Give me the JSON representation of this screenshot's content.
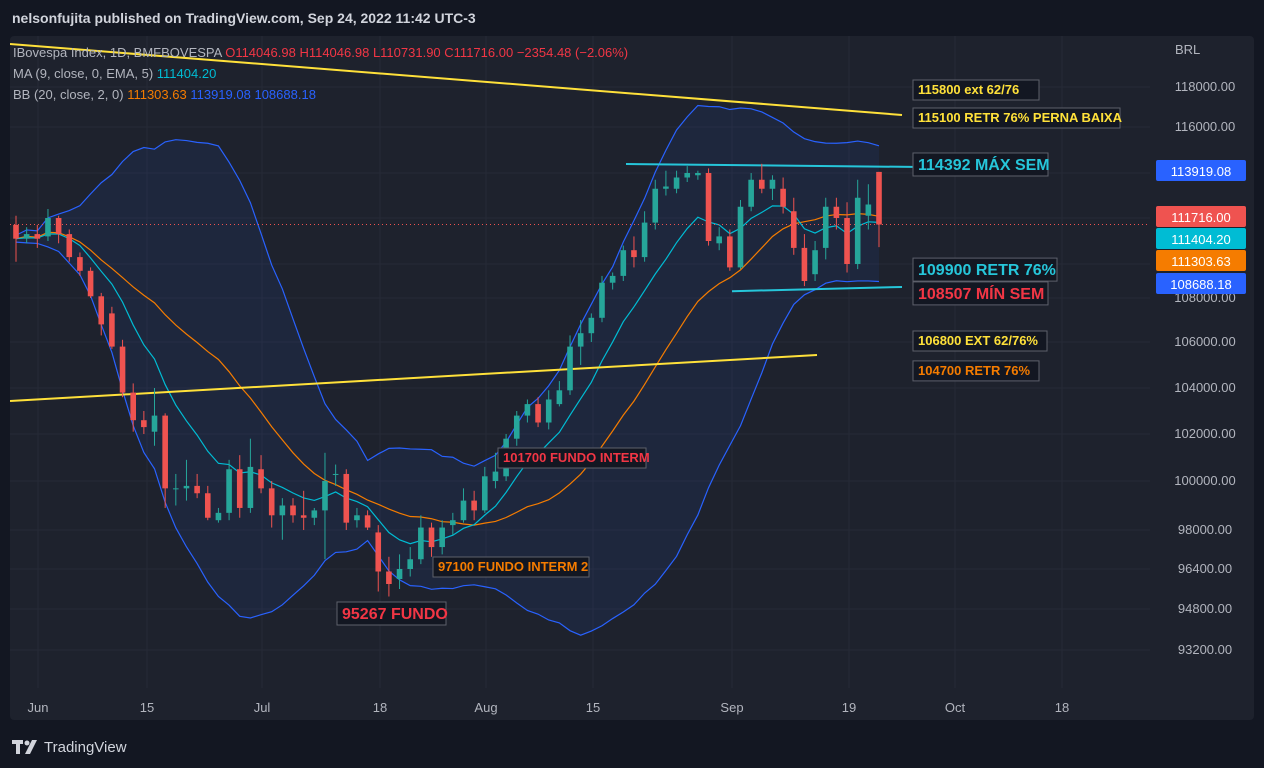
{
  "header": {
    "published_by": "nelsonfujita published on TradingView.com, Sep 24, 2022 11:42 UTC-3"
  },
  "legend": {
    "symbol": "IBovespa Index, 1D, BMFBOVESPA",
    "ohlc": {
      "o": "O114046.98",
      "h": "H114046.98",
      "l": "L110731.90",
      "c": "C111716.00",
      "chg": "−2354.48 (−2.06%)"
    },
    "ma_label": "MA (9, close, 0, EMA, 5)",
    "ma_value": "111404.20",
    "bb_label": "BB (20, close, 2, 0)",
    "bb_basis": "111303.63",
    "bb_upper": "113919.08",
    "bb_lower": "108688.18"
  },
  "colors": {
    "background": "#131722",
    "panel": "#1e222d",
    "up": "#26a69a",
    "down": "#ef5350",
    "bb_band": "#2962ff",
    "bb_basis": "#f57c00",
    "ema": "#00bcd4",
    "trendline": "#ffe13a"
  },
  "footer": {
    "brand": "TradingView"
  },
  "chart_data": {
    "type": "candlestick",
    "currency": "BRL",
    "y_ticks": [
      "118000.00",
      "116000.00",
      "114000.00",
      "112000.00",
      "110000.00",
      "108000.00",
      "106000.00",
      "104000.00",
      "102000.00",
      "100000.00",
      "98000.00",
      "96400.00",
      "94800.00",
      "93200.00"
    ],
    "x_ticks": [
      "Jun",
      "15",
      "Jul",
      "18",
      "Aug",
      "15",
      "Sep",
      "19",
      "Oct",
      "18"
    ],
    "last_price": 111716.0,
    "price_badges": [
      {
        "label": "113919.08",
        "color": "#2962ff",
        "value": 113919.08
      },
      {
        "label": "111716.00",
        "color": "#ef5350",
        "value": 111716.0
      },
      {
        "label": "111404.20",
        "color": "#00bcd4",
        "value": 111404.2
      },
      {
        "label": "111303.63",
        "color": "#f57c00",
        "value": 111303.63
      },
      {
        "label": "108688.18",
        "color": "#2962ff",
        "value": 108688.18
      }
    ],
    "annotations": [
      {
        "text": "115800 ext 62/76",
        "color": "#ffe13a",
        "value": 117800,
        "side": "right"
      },
      {
        "text": "115100 RETR 76% PERNA BAIXA",
        "color": "#ffe13a",
        "value": 116400,
        "side": "right"
      },
      {
        "text": "114392 MÁX SEM",
        "color": "#26c6da",
        "value": 114392,
        "side": "right"
      },
      {
        "text": "109900 RETR 76%",
        "color": "#26c6da",
        "value": 109700,
        "side": "right"
      },
      {
        "text": "108507 MÍN SEM",
        "color": "#f23645",
        "value": 108300,
        "side": "right"
      },
      {
        "text": "106800 EXT 62/76%",
        "color": "#ffe13a",
        "value": 106000,
        "side": "right"
      },
      {
        "text": "104700  RETR 76%",
        "color": "#f57c00",
        "value": 104700,
        "side": "right"
      },
      {
        "text": "101700 FUNDO INTERM",
        "color": "#f23645",
        "value": 100950,
        "side": "mid"
      },
      {
        "text": "97100 FUNDO INTERM 2",
        "color": "#f57c00",
        "value": 96680,
        "side": "mid"
      },
      {
        "text": "95267 FUNDO",
        "color": "#f23645",
        "value": 94700,
        "side": "low"
      }
    ],
    "candles": [
      {
        "d": "Jun 1",
        "o": 111700,
        "h": 112100,
        "l": 110100,
        "c": 111100
      },
      {
        "d": "Jun 2",
        "o": 111100,
        "h": 111600,
        "l": 110900,
        "c": 111300
      },
      {
        "d": "Jun 3",
        "o": 111300,
        "h": 111700,
        "l": 110700,
        "c": 111100
      },
      {
        "d": "Jun 6",
        "o": 111200,
        "h": 112400,
        "l": 111000,
        "c": 112000
      },
      {
        "d": "Jun 7",
        "o": 112000,
        "h": 112100,
        "l": 110900,
        "c": 111300
      },
      {
        "d": "Jun 8",
        "o": 111300,
        "h": 111500,
        "l": 110100,
        "c": 110300
      },
      {
        "d": "Jun 9",
        "o": 110300,
        "h": 110500,
        "l": 109300,
        "c": 109600
      },
      {
        "d": "Jun 10",
        "o": 109600,
        "h": 109800,
        "l": 108000,
        "c": 108100
      },
      {
        "d": "Jun 13",
        "o": 108100,
        "h": 108300,
        "l": 106300,
        "c": 106800
      },
      {
        "d": "Jun 14",
        "o": 107300,
        "h": 107600,
        "l": 105700,
        "c": 105800
      },
      {
        "d": "Jun 15",
        "o": 105800,
        "h": 106100,
        "l": 103600,
        "c": 103800
      },
      {
        "d": "Jun 16",
        "o": 103800,
        "h": 104200,
        "l": 102100,
        "c": 102600
      },
      {
        "d": "Jun 17",
        "o": 102600,
        "h": 103000,
        "l": 102000,
        "c": 102300
      },
      {
        "d": "Jun 20",
        "o": 102100,
        "h": 104000,
        "l": 101500,
        "c": 102800
      },
      {
        "d": "Jun 21",
        "o": 102800,
        "h": 102900,
        "l": 98900,
        "c": 99700
      },
      {
        "d": "Jun 22",
        "o": 99700,
        "h": 100300,
        "l": 99000,
        "c": 99700
      },
      {
        "d": "Jun 23",
        "o": 99700,
        "h": 100900,
        "l": 99200,
        "c": 99800
      },
      {
        "d": "Jun 24",
        "o": 99800,
        "h": 100300,
        "l": 99300,
        "c": 99500
      },
      {
        "d": "Jun 27",
        "o": 99500,
        "h": 99800,
        "l": 98400,
        "c": 98500
      },
      {
        "d": "Jun 28",
        "o": 98400,
        "h": 98900,
        "l": 98300,
        "c": 98700
      },
      {
        "d": "Jun 29",
        "o": 98700,
        "h": 100900,
        "l": 98400,
        "c": 100500
      },
      {
        "d": "Jun 30",
        "o": 100500,
        "h": 101100,
        "l": 98500,
        "c": 98900
      },
      {
        "d": "Jul 1",
        "o": 98900,
        "h": 101800,
        "l": 98700,
        "c": 100600
      },
      {
        "d": "Jul 4",
        "o": 100500,
        "h": 101100,
        "l": 99500,
        "c": 99700
      },
      {
        "d": "Jul 5",
        "o": 99700,
        "h": 100000,
        "l": 98100,
        "c": 98600
      },
      {
        "d": "Jul 6",
        "o": 98600,
        "h": 99300,
        "l": 97600,
        "c": 99000
      },
      {
        "d": "Jul 7",
        "o": 99000,
        "h": 99300,
        "l": 98300,
        "c": 98600
      },
      {
        "d": "Jul 8",
        "o": 98600,
        "h": 99600,
        "l": 98000,
        "c": 98500
      },
      {
        "d": "Jul 11",
        "o": 98500,
        "h": 98900,
        "l": 98200,
        "c": 98800
      },
      {
        "d": "Jul 12",
        "o": 98800,
        "h": 101200,
        "l": 96800,
        "c": 100000
      },
      {
        "d": "Jul 13",
        "o": 100300,
        "h": 100700,
        "l": 99800,
        "c": 100300
      },
      {
        "d": "Jul 14",
        "o": 100300,
        "h": 100500,
        "l": 98000,
        "c": 98300
      },
      {
        "d": "Jul 15",
        "o": 98400,
        "h": 98900,
        "l": 98100,
        "c": 98600
      },
      {
        "d": "Jul 18",
        "o": 98600,
        "h": 98800,
        "l": 98000,
        "c": 98100
      },
      {
        "d": "Jul 19",
        "o": 97900,
        "h": 98200,
        "l": 95500,
        "c": 96300
      },
      {
        "d": "Jul 20",
        "o": 96300,
        "h": 96900,
        "l": 95300,
        "c": 95800
      },
      {
        "d": "Jul 21",
        "o": 96000,
        "h": 97000,
        "l": 95600,
        "c": 96400
      },
      {
        "d": "Jul 22",
        "o": 96400,
        "h": 97300,
        "l": 96100,
        "c": 96800
      },
      {
        "d": "Jul 25",
        "o": 96800,
        "h": 98600,
        "l": 96600,
        "c": 98100
      },
      {
        "d": "Jul 26",
        "o": 98100,
        "h": 98300,
        "l": 96900,
        "c": 97300
      },
      {
        "d": "Jul 27",
        "o": 97300,
        "h": 98400,
        "l": 97000,
        "c": 98100
      },
      {
        "d": "Jul 28",
        "o": 98200,
        "h": 98700,
        "l": 97800,
        "c": 98400
      },
      {
        "d": "Jul 29",
        "o": 98400,
        "h": 99700,
        "l": 98300,
        "c": 99200
      },
      {
        "d": "Aug 1",
        "o": 99200,
        "h": 99600,
        "l": 98400,
        "c": 98800
      },
      {
        "d": "Aug 2",
        "o": 98800,
        "h": 100600,
        "l": 98700,
        "c": 100200
      },
      {
        "d": "Aug 3",
        "o": 100000,
        "h": 101200,
        "l": 99700,
        "c": 100400
      },
      {
        "d": "Aug 4",
        "o": 100200,
        "h": 102000,
        "l": 100000,
        "c": 101800
      },
      {
        "d": "Aug 5",
        "o": 101800,
        "h": 103000,
        "l": 101500,
        "c": 102800
      },
      {
        "d": "Aug 8",
        "o": 102800,
        "h": 103500,
        "l": 102500,
        "c": 103300
      },
      {
        "d": "Aug 9",
        "o": 103300,
        "h": 103600,
        "l": 102300,
        "c": 102500
      },
      {
        "d": "Aug 10",
        "o": 102500,
        "h": 103900,
        "l": 102200,
        "c": 103500
      },
      {
        "d": "Aug 11",
        "o": 103300,
        "h": 104300,
        "l": 103200,
        "c": 103900
      },
      {
        "d": "Aug 12",
        "o": 103900,
        "h": 106300,
        "l": 103700,
        "c": 105800
      },
      {
        "d": "Aug 15",
        "o": 105800,
        "h": 107000,
        "l": 105000,
        "c": 106400
      },
      {
        "d": "Aug 16",
        "o": 106400,
        "h": 107300,
        "l": 106000,
        "c": 107100
      },
      {
        "d": "Aug 17",
        "o": 107100,
        "h": 109300,
        "l": 106900,
        "c": 108900
      },
      {
        "d": "Aug 18",
        "o": 108900,
        "h": 109500,
        "l": 108500,
        "c": 109300
      },
      {
        "d": "Aug 19",
        "o": 109300,
        "h": 110800,
        "l": 109000,
        "c": 110600
      },
      {
        "d": "Aug 22",
        "o": 110600,
        "h": 111200,
        "l": 109800,
        "c": 110300
      },
      {
        "d": "Aug 23",
        "o": 110300,
        "h": 112300,
        "l": 110100,
        "c": 111800
      },
      {
        "d": "Aug 24",
        "o": 111800,
        "h": 113700,
        "l": 111500,
        "c": 113300
      },
      {
        "d": "Aug 25",
        "o": 113300,
        "h": 114100,
        "l": 113000,
        "c": 113400
      },
      {
        "d": "Aug 26",
        "o": 113300,
        "h": 114100,
        "l": 113100,
        "c": 113800
      },
      {
        "d": "Aug 29",
        "o": 113800,
        "h": 114300,
        "l": 113600,
        "c": 114000
      },
      {
        "d": "Aug 30",
        "o": 113900,
        "h": 114100,
        "l": 113700,
        "c": 114000
      },
      {
        "d": "Aug 31",
        "o": 114000,
        "h": 114200,
        "l": 110800,
        "c": 111000
      },
      {
        "d": "Sep 1",
        "o": 110900,
        "h": 111600,
        "l": 110600,
        "c": 111200
      },
      {
        "d": "Sep 2",
        "o": 111200,
        "h": 111500,
        "l": 109600,
        "c": 109800
      },
      {
        "d": "Sep 5",
        "o": 109800,
        "h": 112800,
        "l": 109700,
        "c": 112500
      },
      {
        "d": "Sep 6",
        "o": 112500,
        "h": 114000,
        "l": 112300,
        "c": 113700
      },
      {
        "d": "Sep 8",
        "o": 113700,
        "h": 114400,
        "l": 113100,
        "c": 113300
      },
      {
        "d": "Sep 9",
        "o": 113300,
        "h": 113900,
        "l": 112800,
        "c": 113700
      },
      {
        "d": "Sep 12",
        "o": 113300,
        "h": 113800,
        "l": 112200,
        "c": 112500
      },
      {
        "d": "Sep 13",
        "o": 112300,
        "h": 112900,
        "l": 110400,
        "c": 110700
      },
      {
        "d": "Sep 14",
        "o": 110700,
        "h": 111300,
        "l": 108700,
        "c": 109000
      },
      {
        "d": "Sep 15",
        "o": 109400,
        "h": 111000,
        "l": 109000,
        "c": 110600
      },
      {
        "d": "Sep 16",
        "o": 110700,
        "h": 112900,
        "l": 110200,
        "c": 112500
      },
      {
        "d": "Sep 19",
        "o": 112500,
        "h": 112900,
        "l": 111500,
        "c": 112000
      },
      {
        "d": "Sep 20",
        "o": 112000,
        "h": 112700,
        "l": 109500,
        "c": 110000
      },
      {
        "d": "Sep 21",
        "o": 110000,
        "h": 113700,
        "l": 109700,
        "c": 112900
      },
      {
        "d": "Sep 22",
        "o": 112100,
        "h": 113500,
        "l": 111500,
        "c": 112600
      },
      {
        "d": "Sep 23",
        "o": 114047,
        "h": 114047,
        "l": 110732,
        "c": 111716
      }
    ]
  }
}
